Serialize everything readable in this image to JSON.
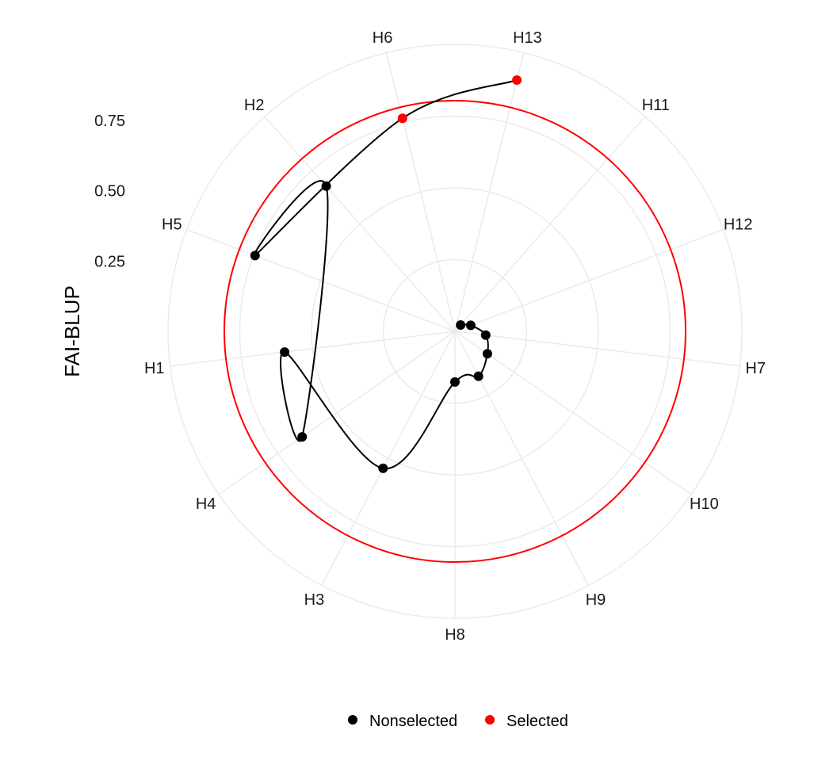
{
  "chart_data": {
    "type": "polar-scatter",
    "ylabel": "FAI-BLUP",
    "yticks": [
      0.25,
      0.5,
      0.75
    ],
    "ytick_labels": [
      "0.25",
      "0.50",
      "0.75"
    ],
    "rlim": [
      0,
      1.02
    ],
    "grid": true,
    "threshold": 0.82,
    "categories": [
      "H13",
      "H11",
      "H12",
      "H7",
      "H10",
      "H9",
      "H8",
      "H3",
      "H4",
      "H1",
      "H5",
      "H2",
      "H6"
    ],
    "series": [
      {
        "name": "Nonselected",
        "color": "#000000"
      },
      {
        "name": "Selected",
        "color": "#ff0000"
      }
    ],
    "points": [
      {
        "category": "H13",
        "value": 0.92,
        "group": "Selected"
      },
      {
        "category": "H6",
        "value": 0.78,
        "group": "Selected"
      },
      {
        "category": "H2",
        "value": 0.69,
        "group": "Nonselected"
      },
      {
        "category": "H5",
        "value": 0.76,
        "group": "Nonselected"
      },
      {
        "category": "H1",
        "value": 0.61,
        "group": "Nonselected"
      },
      {
        "category": "H4",
        "value": 0.66,
        "group": "Nonselected"
      },
      {
        "category": "H3",
        "value": 0.55,
        "group": "Nonselected"
      },
      {
        "category": "H8",
        "value": 0.18,
        "group": "Nonselected"
      },
      {
        "category": "H9",
        "value": 0.18,
        "group": "Nonselected"
      },
      {
        "category": "H10",
        "value": 0.14,
        "group": "Nonselected"
      },
      {
        "category": "H7",
        "value": 0.11,
        "group": "Nonselected"
      },
      {
        "category": "H12",
        "value": 0.06,
        "group": "Nonselected"
      },
      {
        "category": "H11",
        "value": 0.03,
        "group": "Nonselected"
      }
    ],
    "legend_position": "bottom"
  }
}
